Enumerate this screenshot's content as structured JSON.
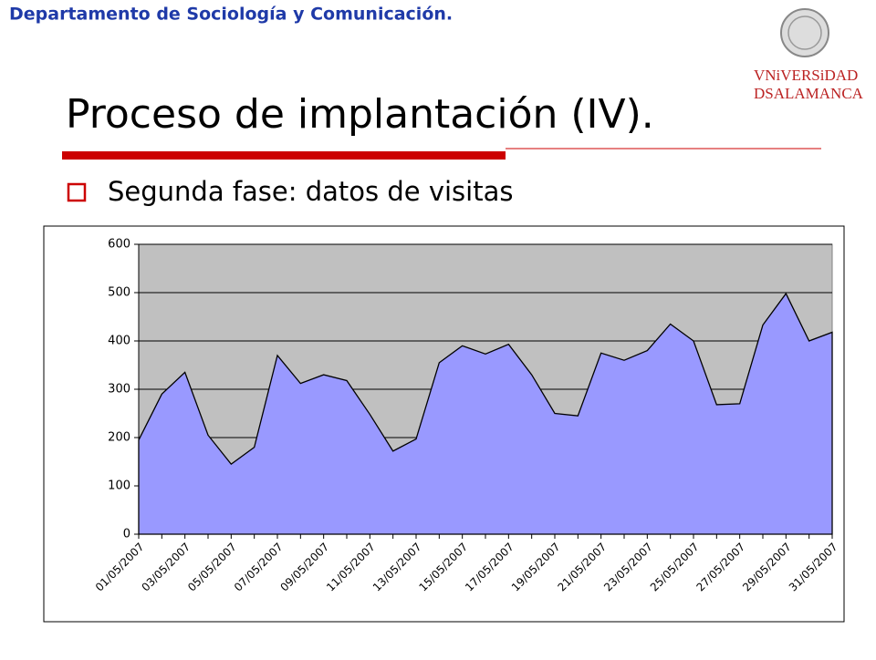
{
  "header": "Departamento de Sociología y Comunicación.",
  "logo": {
    "line1": "VNiVERSiDAD",
    "line2": "DSALAMANCA"
  },
  "title": "Proceso de implantación (IV).",
  "bullet": "Segunda fase: datos de visitas",
  "chart_data": {
    "type": "area",
    "categories": [
      "01/05/2007",
      null,
      "03/05/2007",
      null,
      "05/05/2007",
      null,
      "07/05/2007",
      null,
      "09/05/2007",
      null,
      "11/05/2007",
      null,
      "13/05/2007",
      null,
      "15/05/2007",
      null,
      "17/05/2007",
      null,
      "19/05/2007",
      null,
      "21/05/2007",
      null,
      "23/05/2007",
      null,
      "25/05/2007",
      null,
      "27/05/2007",
      null,
      "29/05/2007",
      null,
      "31/05/2007"
    ],
    "values": [
      195,
      290,
      335,
      205,
      145,
      180,
      370,
      312,
      330,
      318,
      248,
      172,
      197,
      355,
      390,
      373,
      393,
      330,
      250,
      245,
      375,
      360,
      380,
      435,
      400,
      268,
      270,
      433,
      498,
      400,
      418
    ],
    "color": "#9999ff",
    "ylim": [
      0,
      600
    ],
    "yticks": [
      0,
      100,
      200,
      300,
      400,
      500,
      600
    ],
    "grid": true
  }
}
